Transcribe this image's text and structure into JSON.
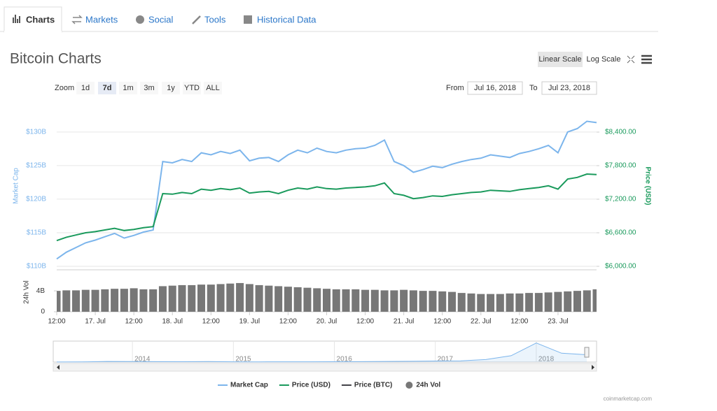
{
  "tabs": [
    "Charts",
    "Markets",
    "Social",
    "Tools",
    "Historical Data"
  ],
  "title": "Bitcoin Charts",
  "scale_buttons": [
    "Linear Scale",
    "Log Scale"
  ],
  "toolbar": {
    "zoom_label": "Zoom",
    "ranges": [
      "1d",
      "7d",
      "1m",
      "3m",
      "1y",
      "YTD",
      "ALL"
    ],
    "selected": "7d",
    "from_label": "From",
    "from": "Jul 16, 2018",
    "to_label": "To",
    "to": "Jul 23, 2018"
  },
  "credit": "coinmarketcap.com",
  "chart_data": [
    {
      "type": "line",
      "categories": [
        "12:00",
        null,
        null,
        null,
        "17. Jul",
        null,
        null,
        null,
        "12:00",
        null,
        null,
        null,
        "18. Jul",
        null,
        null,
        null,
        "12:00",
        null,
        null,
        null,
        "19. Jul",
        null,
        null,
        null,
        "12:00",
        null,
        null,
        null,
        "20. Jul",
        null,
        null,
        null,
        "12:00",
        null,
        null,
        null,
        "21. Jul",
        null,
        null,
        null,
        "12:00",
        null,
        null,
        null,
        "22. Jul",
        null,
        null,
        null,
        "12:00",
        null,
        null,
        null,
        "23. Jul",
        null,
        null,
        null,
        null
      ],
      "ylabel": "Market Cap",
      "y2label": "Price (USD)",
      "y3label": "24h Vol",
      "ylim": [
        110,
        133
      ],
      "yticks": [
        {
          "value": 110,
          "label": "$110B"
        },
        {
          "value": 115,
          "label": "$115B"
        },
        {
          "value": 120,
          "label": "$120B"
        },
        {
          "value": 125,
          "label": "$125B"
        },
        {
          "value": 130,
          "label": "$130B"
        }
      ],
      "y2lim": [
        6000,
        8762.5
      ],
      "y2ticks": [
        {
          "value": 6000,
          "label": "$6,000.00"
        },
        {
          "value": 6600,
          "label": "$6,600.00"
        },
        {
          "value": 7200,
          "label": "$7,200.00"
        },
        {
          "value": 7800,
          "label": "$7,800.00"
        },
        {
          "value": 8400,
          "label": "$8,400.00"
        }
      ],
      "y3lim": [
        0,
        7.5
      ],
      "y3ticks": [
        0,
        {
          "value": 4,
          "label": "4B"
        }
      ],
      "grid": true,
      "series": [
        {
          "name": "Market Cap",
          "color": "#7cb5ec",
          "axis": "y",
          "type": "line",
          "values": [
            111.1,
            112.1,
            112.8,
            113.5,
            113.9,
            114.4,
            114.9,
            114.2,
            114.6,
            115.1,
            115.4,
            125.6,
            125.4,
            125.9,
            125.6,
            126.9,
            126.6,
            127.1,
            126.8,
            127.3,
            125.7,
            126.1,
            126.2,
            125.6,
            126.6,
            127.3,
            126.9,
            127.6,
            127.1,
            126.9,
            127.3,
            127.5,
            127.6,
            128.0,
            128.8,
            125.6,
            125.0,
            124.0,
            124.4,
            124.9,
            124.7,
            125.2,
            125.6,
            125.9,
            126.1,
            126.6,
            126.4,
            126.2,
            126.8,
            127.1,
            127.5,
            128.0,
            126.9,
            130.0,
            130.5,
            131.6,
            131.4
          ]
        },
        {
          "name": "Price (USD)",
          "color": "#1a9a5c",
          "axis": "y2",
          "type": "line",
          "values": [
            6460,
            6520,
            6560,
            6600,
            6620,
            6650,
            6680,
            6640,
            6660,
            6690,
            6710,
            7300,
            7290,
            7320,
            7300,
            7380,
            7360,
            7390,
            7370,
            7400,
            7310,
            7330,
            7340,
            7300,
            7360,
            7400,
            7380,
            7420,
            7390,
            7380,
            7400,
            7410,
            7420,
            7440,
            7490,
            7300,
            7270,
            7210,
            7230,
            7260,
            7250,
            7280,
            7300,
            7320,
            7330,
            7360,
            7350,
            7340,
            7370,
            7390,
            7410,
            7440,
            7380,
            7560,
            7590,
            7650,
            7640
          ]
        },
        {
          "name": "Price (BTC)",
          "color": "#434348",
          "visible": false
        },
        {
          "name": "24h Vol",
          "color": "#777777",
          "axis": "y3",
          "type": "bar",
          "values": [
            4.0,
            4.1,
            4.1,
            4.2,
            4.2,
            4.3,
            4.4,
            4.4,
            4.5,
            4.3,
            4.3,
            4.9,
            5.0,
            5.1,
            5.1,
            5.2,
            5.2,
            5.3,
            5.4,
            5.5,
            5.3,
            5.1,
            5.0,
            4.9,
            4.8,
            4.7,
            4.6,
            4.5,
            4.4,
            4.3,
            4.3,
            4.3,
            4.2,
            4.2,
            4.1,
            4.1,
            4.2,
            4.1,
            4.0,
            4.0,
            3.9,
            3.8,
            3.6,
            3.5,
            3.4,
            3.4,
            3.4,
            3.5,
            3.5,
            3.6,
            3.6,
            3.7,
            3.8,
            3.9,
            4.0,
            4.1,
            4.3
          ]
        }
      ]
    },
    {
      "type": "area",
      "categories": [
        null,
        null,
        null,
        "2014",
        null,
        null,
        null,
        "2015",
        null,
        null,
        null,
        "2016",
        null,
        null,
        null,
        "2017",
        null,
        null,
        null,
        "2018",
        null,
        null
      ],
      "values": [
        1.5,
        2,
        10,
        8,
        7,
        6,
        8,
        4,
        3.5,
        4,
        4,
        6,
        7,
        10,
        12,
        16,
        20,
        40,
        100,
        300,
        140,
        115
      ],
      "color": "#7cb5ec",
      "ylim": [
        0,
        330
      ]
    }
  ]
}
